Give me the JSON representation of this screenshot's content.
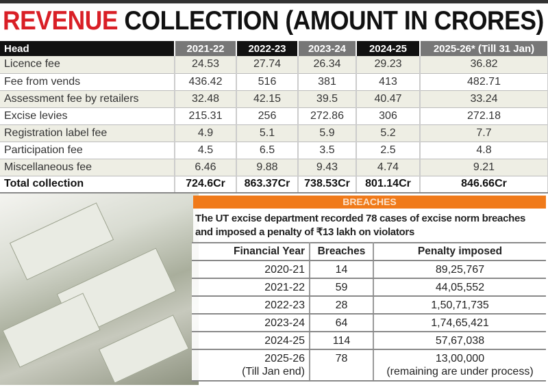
{
  "title": {
    "highlight": "REVENUE",
    "rest": " COLLECTION (AMOUNT IN CRORES)"
  },
  "colors": {
    "title_red": "#d91f26",
    "breaches_bar": "#f07a1a"
  },
  "chart_data": [
    {
      "type": "table",
      "title": "REVENUE COLLECTION (AMOUNT IN CRORES)",
      "columns": [
        "Head",
        "2021-22",
        "2022-23",
        "2023-24",
        "2024-25",
        "2025-26* (Till 31 Jan)"
      ],
      "rows": [
        [
          "Licence fee",
          "24.53",
          "27.74",
          "26.34",
          "29.23",
          "36.82"
        ],
        [
          "Fee from vends",
          "436.42",
          "516",
          "381",
          "413",
          "482.71"
        ],
        [
          "Assessment fee by retailers",
          "32.48",
          "42.15",
          "39.5",
          "40.47",
          "33.24"
        ],
        [
          "Excise levies",
          "215.31",
          "256",
          "272.86",
          "306",
          "272.18"
        ],
        [
          "Registration label fee",
          "4.9",
          "5.1",
          "5.9",
          "5.2",
          "7.7"
        ],
        [
          "Participation fee",
          "4.5",
          "6.5",
          "3.5",
          "2.5",
          "4.8"
        ],
        [
          "Miscellaneous fee",
          "6.46",
          "9.88",
          "9.43",
          "4.74",
          "9.21"
        ],
        [
          "Total collection",
          "724.6Cr",
          "863.37Cr",
          "738.53Cr",
          "801.14Cr",
          "846.66Cr"
        ]
      ]
    },
    {
      "type": "table",
      "title": "BREACHES",
      "intro": "The UT excise department recorded 78 cases of excise norm breaches and imposed a penalty of ₹13 lakh on violators",
      "columns": [
        "Financial Year",
        "Breaches",
        "Penalty imposed"
      ],
      "rows": [
        [
          "2020-21",
          "14",
          "89,25,767"
        ],
        [
          "2021-22",
          "59",
          "44,05,552"
        ],
        [
          "2022-23",
          "28",
          "1,50,71,735"
        ],
        [
          "2023-24",
          "64",
          "1,74,65,421"
        ],
        [
          "2024-25",
          "114",
          "57,67,038"
        ],
        [
          "2025-26",
          "78",
          "13,00,000"
        ]
      ],
      "last_row_notes": [
        "(Till Jan end)",
        "(remaining are under process)"
      ]
    }
  ]
}
